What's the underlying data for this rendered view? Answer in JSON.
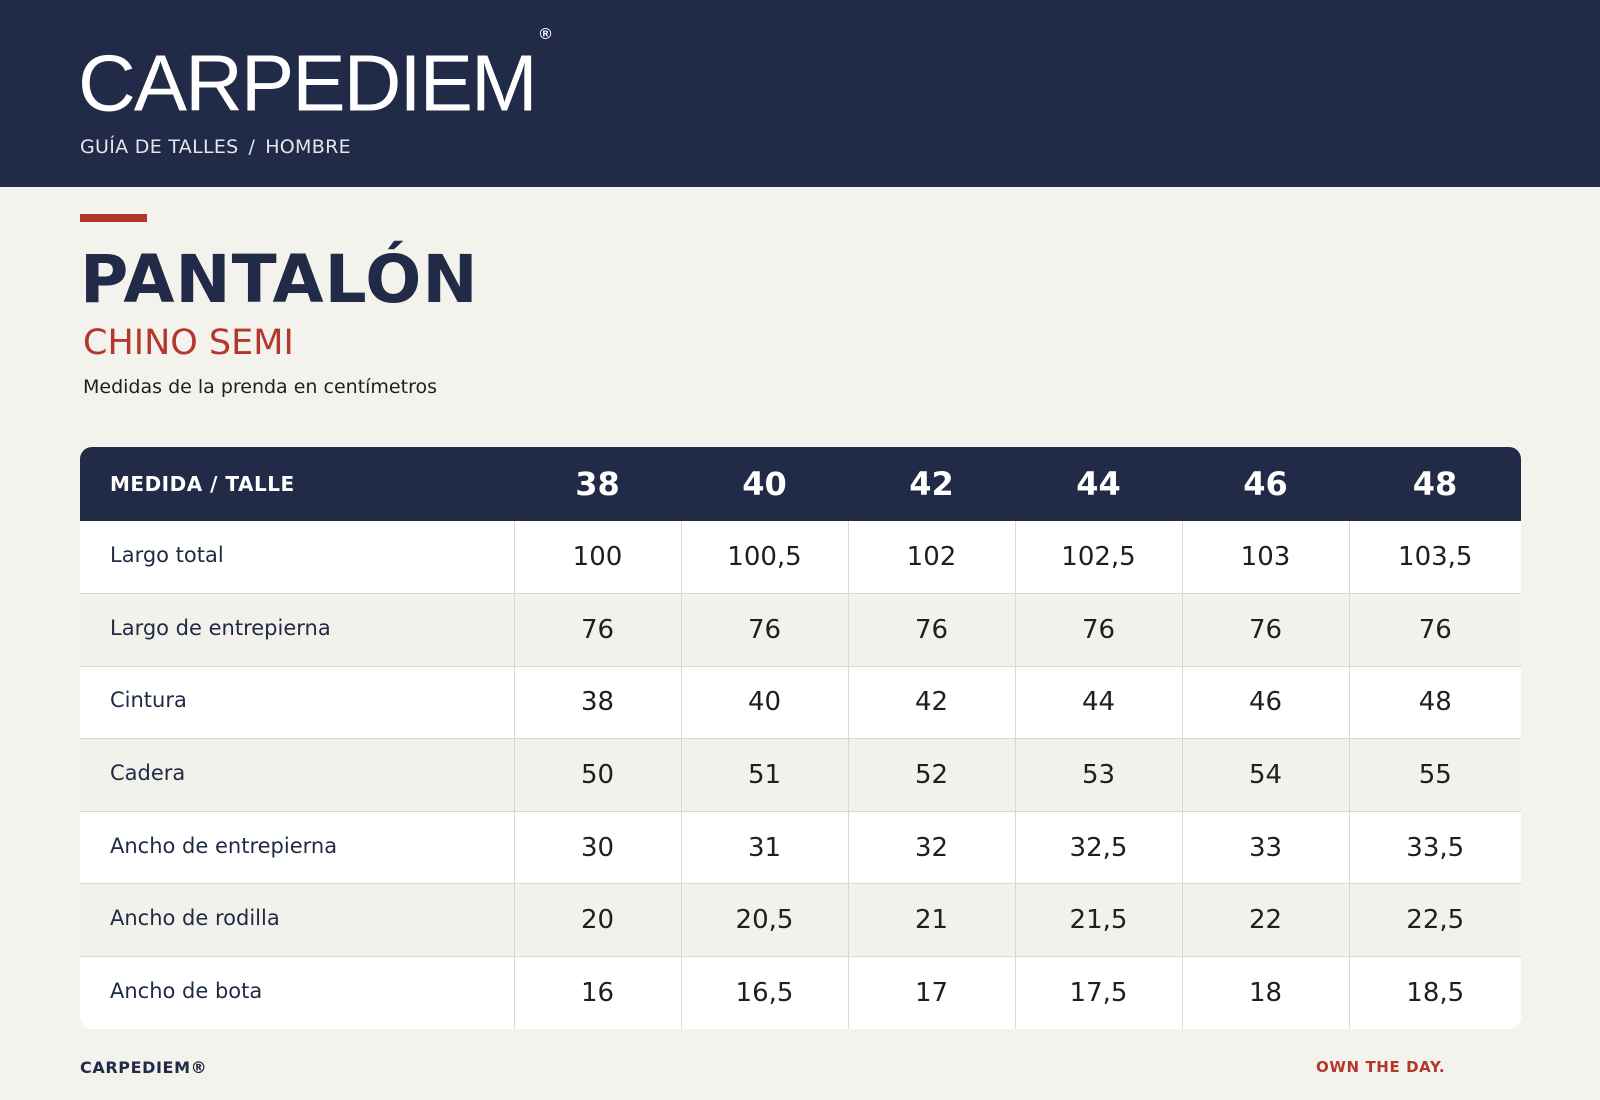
{
  "header": {
    "logo": "CARPEDIEM",
    "logo_mark": "®",
    "breadcrumb": [
      "GUÍA DE TALLES",
      "HOMBRE"
    ],
    "breadcrumb_separator": "/"
  },
  "product": {
    "title": "PANTALÓN",
    "subtitle": "CHINO SEMI",
    "note": "Medidas de la prenda en centímetros"
  },
  "table": {
    "header_label": "MEDIDA / TALLE",
    "sizes": [
      "38",
      "40",
      "42",
      "44",
      "46",
      "48"
    ],
    "rows": [
      {
        "label": "Largo total",
        "values": [
          "100",
          "100,5",
          "102",
          "102,5",
          "103",
          "103,5"
        ]
      },
      {
        "label": "Largo de entrepierna",
        "values": [
          "76",
          "76",
          "76",
          "76",
          "76",
          "76"
        ]
      },
      {
        "label": "Cintura",
        "values": [
          "38",
          "40",
          "42",
          "44",
          "46",
          "48"
        ]
      },
      {
        "label": "Cadera",
        "values": [
          "50",
          "51",
          "52",
          "53",
          "54",
          "55"
        ]
      },
      {
        "label": "Ancho de entrepierna",
        "values": [
          "30",
          "31",
          "32",
          "32,5",
          "33",
          "33,5"
        ]
      },
      {
        "label": "Ancho de rodilla",
        "values": [
          "20",
          "20,5",
          "21",
          "21,5",
          "22",
          "22,5"
        ]
      },
      {
        "label": "Ancho de bota",
        "values": [
          "16",
          "16,5",
          "17",
          "17,5",
          "18",
          "18,5"
        ]
      }
    ]
  },
  "footer": {
    "brand": "CARPEDIEM®",
    "tagline": "OWN THE DAY."
  },
  "colors": {
    "navy": "#212a46",
    "accent_red": "#b3382b",
    "background": "#f4f2ec"
  }
}
